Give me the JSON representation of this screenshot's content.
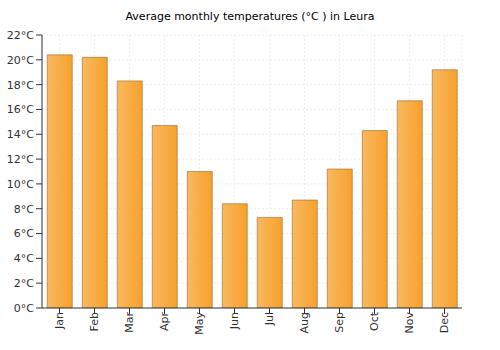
{
  "chart_data": {
    "type": "bar",
    "title": "Average monthly temperatures (°C ) in Leura",
    "categories": [
      "Jan",
      "Feb",
      "Mar",
      "Apr",
      "May",
      "Jun",
      "Jul",
      "Aug",
      "Sep",
      "Oct",
      "Nov",
      "Dec"
    ],
    "values": [
      20.4,
      20.2,
      18.3,
      14.7,
      11.0,
      8.4,
      7.3,
      8.7,
      11.2,
      14.3,
      16.7,
      19.2
    ],
    "color": "#f7a12c",
    "ylim": [
      0,
      22
    ],
    "yticks": [
      {
        "value": 0,
        "label": "0°C"
      },
      {
        "value": 2,
        "label": "2°C"
      },
      {
        "value": 4,
        "label": "4°C"
      },
      {
        "value": 6,
        "label": "6°C"
      },
      {
        "value": 8,
        "label": "8°C"
      },
      {
        "value": 10,
        "label": "10°C"
      },
      {
        "value": 12,
        "label": "12°C"
      },
      {
        "value": 14,
        "label": "14°C"
      },
      {
        "value": 16,
        "label": "16°C"
      },
      {
        "value": 18,
        "label": "18°C"
      },
      {
        "value": 20,
        "label": "20°C"
      },
      {
        "value": 22,
        "label": "22°C"
      }
    ],
    "grid": true
  }
}
